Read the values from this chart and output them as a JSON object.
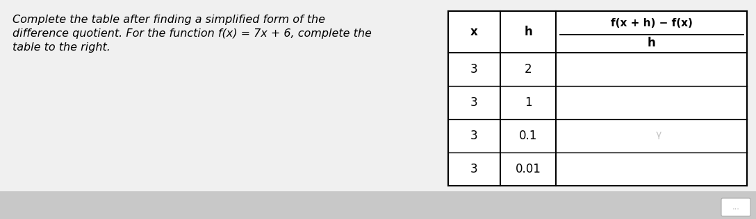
{
  "text_left_line1": "Complete the table after finding a simplified form of the",
  "text_left_line2": "difference quotient. For the function f(x) = 7x + 6, complete the",
  "text_left_line3": "table to the right.",
  "rows": [
    [
      "3",
      "2",
      ""
    ],
    [
      "3",
      "1",
      ""
    ],
    [
      "3",
      "0.1",
      ""
    ],
    [
      "3",
      "0.01",
      ""
    ]
  ],
  "bg_color": "#e8e8e8",
  "text_color": "#000000",
  "font_size_text": 11.5,
  "font_size_table": 12,
  "watermark": "γ",
  "ellipsis": "..."
}
